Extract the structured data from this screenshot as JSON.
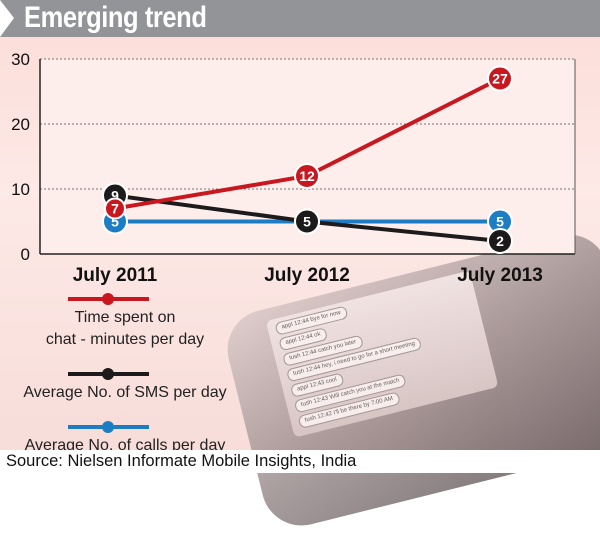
{
  "title": "Emerging trend",
  "source": "Source: Nielsen Informate Mobile Insights, India",
  "phone_messages": [
    "appl 12:44 bye for now",
    "appl 12:44 ok",
    "tush 12:44 catch you later",
    "tush 12:44 hey, i need to go for a short meeting",
    "appl 12:43 cool",
    "tush 12:43 Will catch you at the match",
    "tush 12:42 I'll be there by 7:00 AM"
  ],
  "chart_data": {
    "type": "line",
    "title": "Emerging trend",
    "categories": [
      "July 2011",
      "July 2012",
      "July 2013"
    ],
    "ylim": [
      0,
      30
    ],
    "yticks": [
      0,
      10,
      20,
      30
    ],
    "grid": true,
    "legend_placement": "bottom-left",
    "series": [
      {
        "name": "Time spent on chat - minutes per day",
        "legend_lines": [
          "Time spent on",
          "chat - minutes per day"
        ],
        "color": "#c8171e",
        "values": [
          7,
          12,
          27
        ]
      },
      {
        "name": "Average No. of SMS per day",
        "legend_lines": [
          "Average No. of SMS per day"
        ],
        "color": "#1c1a1b",
        "values": [
          9,
          5,
          2
        ]
      },
      {
        "name": "Average No. of calls per day",
        "legend_lines": [
          "Average No. of calls per day"
        ],
        "color": "#1c7cc4",
        "values": [
          5,
          5,
          5
        ]
      }
    ]
  }
}
